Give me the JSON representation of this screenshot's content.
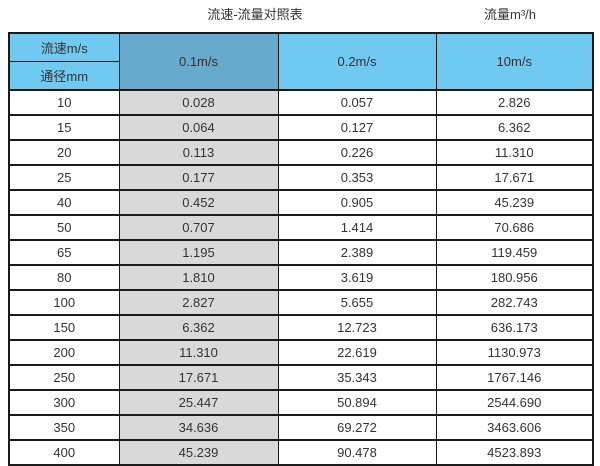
{
  "page": {
    "title_left": "流速-流量对照表",
    "title_right": "流量m³/h"
  },
  "table": {
    "corner_top": "流速m/s",
    "corner_bottom": "通径mm",
    "velocity_headers": [
      "0.1m/s",
      "0.2m/s",
      "10m/s"
    ],
    "rows": [
      {
        "dn": "10",
        "v01": "0.028",
        "v02": "0.057",
        "v10": "2.826"
      },
      {
        "dn": "15",
        "v01": "0.064",
        "v02": "0.127",
        "v10": "6.362"
      },
      {
        "dn": "20",
        "v01": "0.113",
        "v02": "0.226",
        "v10": "11.310"
      },
      {
        "dn": "25",
        "v01": "0.177",
        "v02": "0.353",
        "v10": "17.671"
      },
      {
        "dn": "40",
        "v01": "0.452",
        "v02": "0.905",
        "v10": "45.239"
      },
      {
        "dn": "50",
        "v01": "0.707",
        "v02": "1.414",
        "v10": "70.686"
      },
      {
        "dn": "65",
        "v01": "1.195",
        "v02": "2.389",
        "v10": "119.459"
      },
      {
        "dn": "80",
        "v01": "1.810",
        "v02": "3.619",
        "v10": "180.956"
      },
      {
        "dn": "100",
        "v01": "2.827",
        "v02": "5.655",
        "v10": "282.743"
      },
      {
        "dn": "150",
        "v01": "6.362",
        "v02": "12.723",
        "v10": "636.173"
      },
      {
        "dn": "200",
        "v01": "11.310",
        "v02": "22.619",
        "v10": "1130.973"
      },
      {
        "dn": "250",
        "v01": "17.671",
        "v02": "35.343",
        "v10": "1767.146"
      },
      {
        "dn": "300",
        "v01": "25.447",
        "v02": "50.894",
        "v10": "2544.690"
      },
      {
        "dn": "350",
        "v01": "34.636",
        "v02": "69.272",
        "v10": "3463.606"
      },
      {
        "dn": "400",
        "v01": "45.239",
        "v02": "90.478",
        "v10": "4523.893"
      }
    ]
  },
  "colors": {
    "header_light_blue": "#6FC9F0",
    "header_dark_blue": "#66ABCD",
    "gray_column": "#D9D9D9",
    "border": "#1A1A1A",
    "text": "#333333"
  },
  "chart_data": {
    "type": "table",
    "title": "流速-流量对照表",
    "unit_label": "流量m³/h",
    "row_header_top": "流速m/s",
    "row_header_bottom": "通径mm",
    "columns": [
      "0.1m/s",
      "0.2m/s",
      "10m/s"
    ],
    "diameters_mm": [
      10,
      15,
      20,
      25,
      40,
      50,
      65,
      80,
      100,
      150,
      200,
      250,
      300,
      350,
      400
    ],
    "series": [
      {
        "name": "0.1m/s",
        "values": [
          0.028,
          0.064,
          0.113,
          0.177,
          0.452,
          0.707,
          1.195,
          1.81,
          2.827,
          6.362,
          11.31,
          17.671,
          25.447,
          34.636,
          45.239
        ]
      },
      {
        "name": "0.2m/s",
        "values": [
          0.057,
          0.127,
          0.226,
          0.353,
          0.905,
          1.414,
          2.389,
          3.619,
          5.655,
          12.723,
          22.619,
          35.343,
          50.894,
          69.272,
          90.478
        ]
      },
      {
        "name": "10m/s",
        "values": [
          2.826,
          6.362,
          11.31,
          17.671,
          45.239,
          70.686,
          119.459,
          180.956,
          282.743,
          636.173,
          1130.973,
          1767.146,
          2544.69,
          3463.606,
          4523.893
        ]
      }
    ]
  }
}
